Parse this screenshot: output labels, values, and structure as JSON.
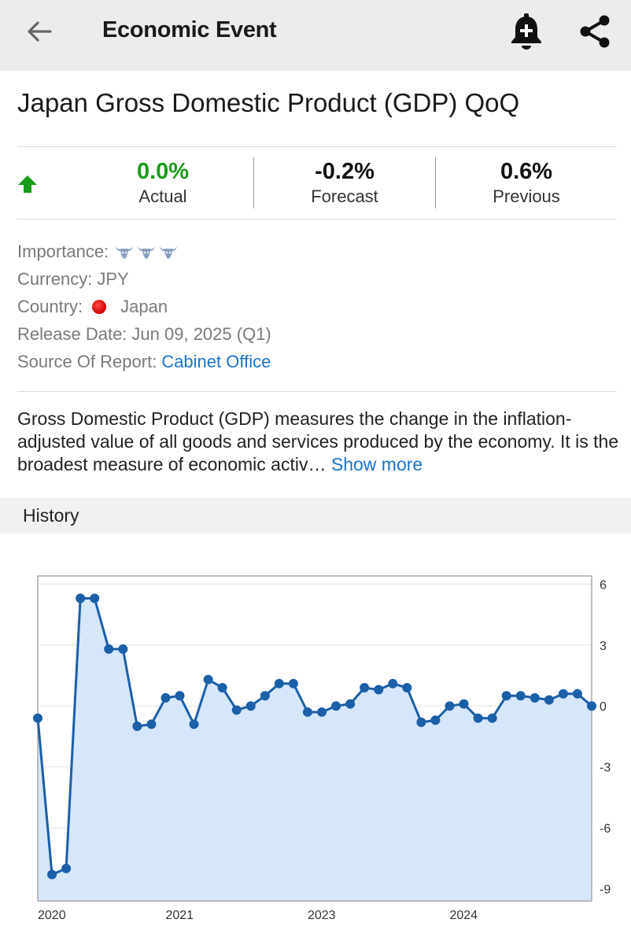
{
  "header": {
    "title": "Economic Event",
    "back_icon": "arrow-left-icon",
    "alert_icon": "bell-plus-icon",
    "share_icon": "share-icon"
  },
  "event": {
    "title": "Japan Gross Domestic Product (GDP) QoQ",
    "trend_icon": "up-arrow-icon",
    "actual": {
      "value": "0.0%",
      "label": "Actual",
      "color": "#1a9c1a"
    },
    "forecast": {
      "value": "-0.2%",
      "label": "Forecast"
    },
    "previous": {
      "value": "0.6%",
      "label": "Previous"
    }
  },
  "details": {
    "importance_label": "Importance:",
    "importance_level": 3,
    "currency_label": "Currency:",
    "currency_value": "JPY",
    "country_label": "Country:",
    "country_value": "Japan",
    "release_label": "Release Date:",
    "release_value": "Jun 09, 2025 (Q1)",
    "source_label": "Source Of Report:",
    "source_value": "Cabinet Office",
    "link_color": "#1a73c9"
  },
  "description": {
    "text": "Gross Domestic Product (GDP) measures the change in the inflation-adjusted value of all goods and services produced by the economy. It is the broadest measure of economic activ…",
    "show_more": "Show more"
  },
  "history": {
    "label": "History"
  },
  "chart_data": {
    "type": "area",
    "title": "",
    "xlabel": "",
    "ylabel": "",
    "y_axis_position": "right",
    "ylim": [
      -9.6,
      6.4
    ],
    "y_ticks": [
      6,
      3,
      0,
      -3,
      -6,
      -9
    ],
    "x_tick_labels": [
      "2020",
      "2021",
      "2023",
      "2024"
    ],
    "line_color": "#1a5fa8",
    "fill_color": "#d6e6fb",
    "series": [
      {
        "values": [
          -0.6,
          -8.3,
          -8.0,
          5.3,
          5.3,
          2.8,
          2.8,
          -1.0,
          -0.9,
          0.4,
          0.5,
          -0.9,
          1.3,
          0.9,
          -0.2,
          0.0,
          0.5,
          1.1,
          1.1,
          -0.3,
          -0.3,
          0.0,
          0.1,
          0.9,
          0.8,
          1.1,
          0.9,
          -0.8,
          -0.7,
          0.0,
          0.1,
          -0.6,
          -0.6,
          0.5,
          0.5,
          0.4,
          0.3,
          0.6,
          0.6,
          0.0
        ]
      }
    ]
  }
}
